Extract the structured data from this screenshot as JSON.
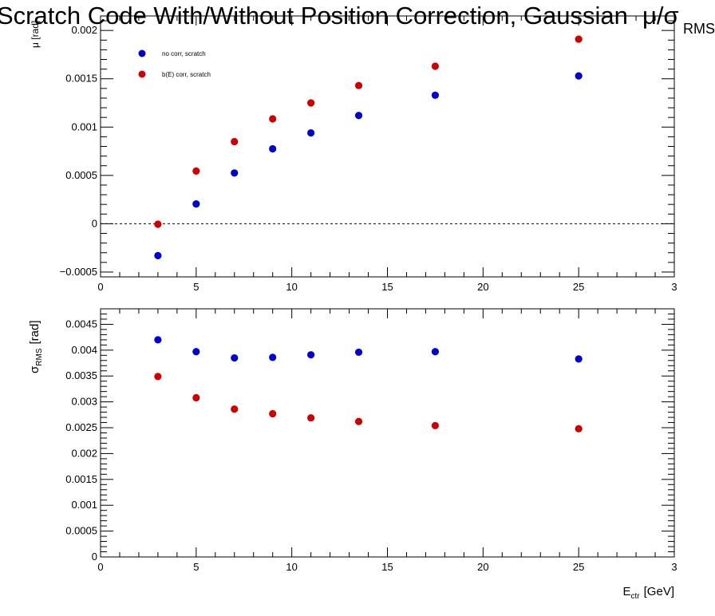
{
  "figure": {
    "title_main": "Scratch Code With/Without Position Correction, Gaussian",
    "title_symbol": "μ/σ",
    "title_right": "RMS"
  },
  "chart_data": [
    {
      "type": "scatter",
      "ylabel": "μ [rad]",
      "xlim": [
        0,
        30
      ],
      "ylim": [
        -0.00055,
        0.00215
      ],
      "x_ticks": [
        "0",
        "5",
        "10",
        "15",
        "20",
        "25",
        "3"
      ],
      "y_ticks": [
        "−0.0005",
        "0",
        "0.0005",
        "0.001",
        "0.0015",
        "0.002"
      ],
      "y_tick_values": [
        -0.0005,
        0,
        0.0005,
        0.001,
        0.0015,
        0.002
      ],
      "reference_line": 0,
      "legend_position": "top-left",
      "series": [
        {
          "name": "no corr, scratch",
          "color": "#0000cc",
          "x": [
            3,
            5,
            7,
            9,
            11,
            13.5,
            17.5,
            25
          ],
          "y": [
            -0.00033,
            0.000205,
            0.000525,
            0.000775,
            0.00094,
            0.00112,
            0.00133,
            0.00153
          ]
        },
        {
          "name": "b(E) corr, scratch",
          "color": "#cc0000",
          "x": [
            3,
            5,
            7,
            9,
            11,
            13.5,
            17.5,
            25
          ],
          "y": [
            -5e-06,
            0.000545,
            0.00085,
            0.001085,
            0.00125,
            0.00143,
            0.00163,
            0.00191
          ]
        }
      ]
    },
    {
      "type": "scatter",
      "ylabel": "σ",
      "ylabel_sub": "RMS",
      "ylabel_unit": "[rad]",
      "xlabel": "E",
      "xlabel_sub": "ctr",
      "xlabel_unit": "[GeV]",
      "xlim": [
        0,
        30
      ],
      "ylim": [
        0,
        0.0048
      ],
      "x_ticks": [
        "0",
        "5",
        "10",
        "15",
        "20",
        "25",
        "3"
      ],
      "y_ticks": [
        "0",
        "0.0005",
        "0.001",
        "0.0015",
        "0.002",
        "0.0025",
        "0.003",
        "0.0035",
        "0.004",
        "0.0045"
      ],
      "y_tick_values": [
        0,
        0.0005,
        0.001,
        0.0015,
        0.002,
        0.0025,
        0.003,
        0.0035,
        0.004,
        0.0045
      ],
      "series": [
        {
          "color": "#0000cc",
          "x": [
            3,
            5,
            7,
            9,
            11,
            13.5,
            17.5,
            25
          ],
          "y": [
            0.0042,
            0.00397,
            0.00385,
            0.00386,
            0.00391,
            0.00396,
            0.00397,
            0.00383
          ]
        },
        {
          "color": "#cc0000",
          "x": [
            3,
            5,
            7,
            9,
            11,
            13.5,
            17.5,
            25
          ],
          "y": [
            0.00349,
            0.00308,
            0.00286,
            0.00277,
            0.00269,
            0.00262,
            0.00254,
            0.00248
          ]
        }
      ]
    }
  ]
}
